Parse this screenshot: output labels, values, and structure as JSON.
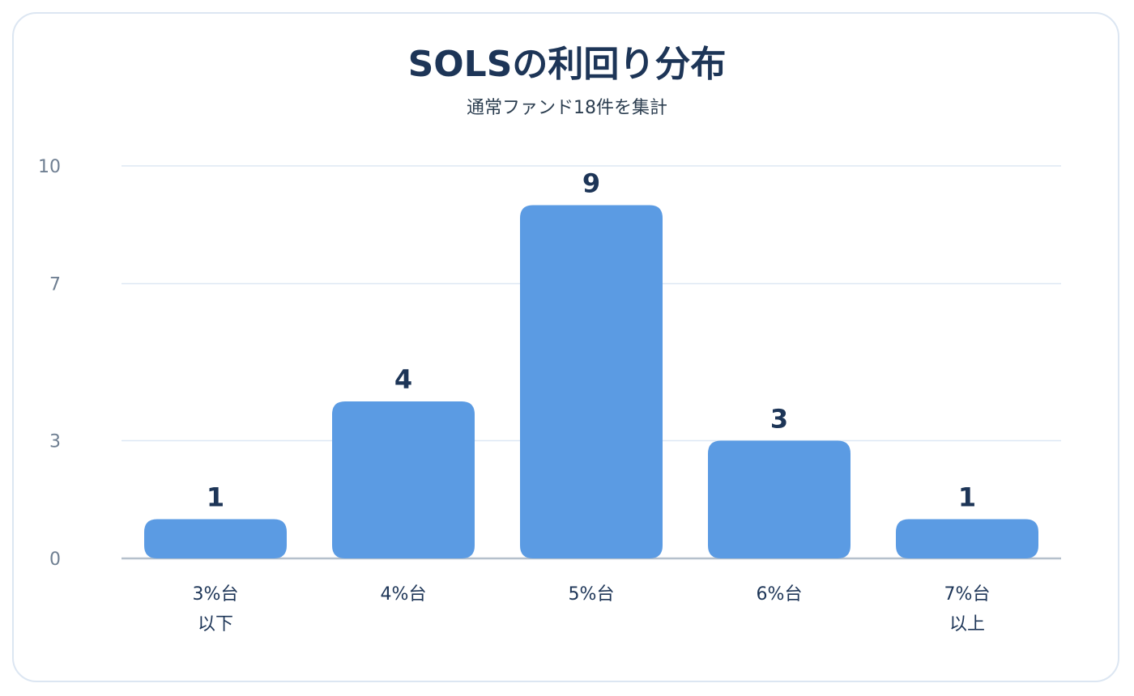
{
  "title": "SOLSの利回り分布",
  "subtitle": "通常ファンド18件を集計",
  "colors": {
    "bar": "#5b9be3",
    "title": "#1d3557",
    "grid": "#dde8f4",
    "axis": "#b5c0cc",
    "tick": "#6f7f92",
    "label": "#1d3557"
  },
  "chart_data": {
    "type": "bar",
    "title": "SOLSの利回り分布",
    "subtitle": "通常ファンド18件を集計",
    "xlabel": "",
    "ylabel": "",
    "categories": [
      [
        "3%台",
        "以下"
      ],
      [
        "4%台"
      ],
      [
        "5%台"
      ],
      [
        "6%台"
      ],
      [
        "7%台",
        "以上"
      ]
    ],
    "values": [
      1,
      4,
      9,
      3,
      1
    ],
    "ylim": [
      0,
      10
    ],
    "yticks": [
      0,
      3,
      7,
      10
    ],
    "grid": true,
    "legend": "none",
    "data_labels": true
  }
}
